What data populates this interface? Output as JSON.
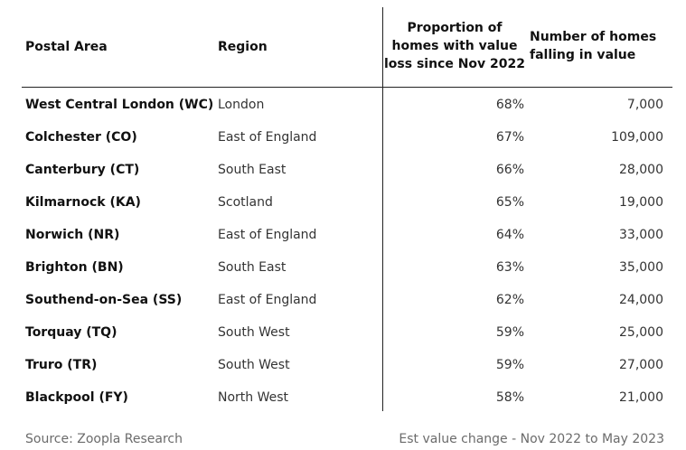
{
  "table": {
    "headers": {
      "postal_area": "Postal Area",
      "region": "Region",
      "proportion_line1": "Proportion of",
      "proportion_line2": "homes with value",
      "proportion_line3": "loss since Nov 2022",
      "number_line1": "Number of homes",
      "number_line2": "falling in value"
    },
    "rows": [
      {
        "postal_area": "West Central London (WC)",
        "region": "London",
        "proportion": "68%",
        "number": "7,000"
      },
      {
        "postal_area": "Colchester (CO)",
        "region": "East of England",
        "proportion": "67%",
        "number": "109,000"
      },
      {
        "postal_area": "Canterbury (CT)",
        "region": "South East",
        "proportion": "66%",
        "number": "28,000"
      },
      {
        "postal_area": "Kilmarnock (KA)",
        "region": "Scotland",
        "proportion": "65%",
        "number": "19,000"
      },
      {
        "postal_area": "Norwich (NR)",
        "region": "East of England",
        "proportion": "64%",
        "number": "33,000"
      },
      {
        "postal_area": "Brighton (BN)",
        "region": "South East",
        "proportion": "63%",
        "number": "35,000"
      },
      {
        "postal_area": "Southend-on-Sea (SS)",
        "region": "East of England",
        "proportion": "62%",
        "number": "24,000"
      },
      {
        "postal_area": "Torquay (TQ)",
        "region": "South West",
        "proportion": "59%",
        "number": "25,000"
      },
      {
        "postal_area": "Truro (TR)",
        "region": "South West",
        "proportion": "59%",
        "number": "27,000"
      },
      {
        "postal_area": "Blackpool (FY)",
        "region": "North West",
        "proportion": "58%",
        "number": "21,000"
      }
    ]
  },
  "footer": {
    "source": "Source: Zoopla Research",
    "note": "Est value change - Nov 2022 to May 2023"
  }
}
